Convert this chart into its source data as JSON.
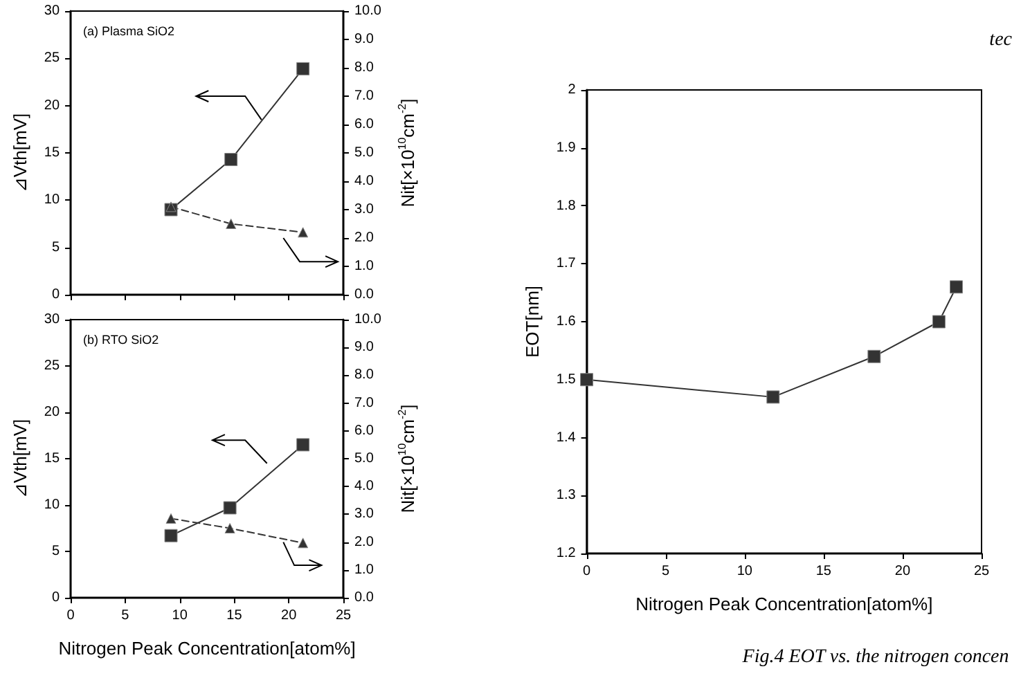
{
  "chart_data": [
    {
      "type": "line",
      "title": "(a) Plasma SiO2",
      "ylabel": "⊿Vth[mV]",
      "y2label": "Nit[×10$^{10}$cm$^{-2}$]",
      "x": [
        9.2,
        14.7,
        21.3
      ],
      "series": [
        {
          "color": "#333333",
          "values": [
            9.0,
            14.3,
            23.9
          ],
          "marker": "square",
          "line_style": "solid"
        },
        {
          "color": "#333333",
          "values": [
            3.1,
            2.5,
            2.2
          ],
          "marker": "triangle",
          "line_style": "dashed",
          "axis": "y2"
        }
      ],
      "xlim": [
        0,
        25
      ],
      "xticks": [
        0,
        5,
        10,
        15,
        20,
        25
      ],
      "ylim": [
        0,
        30
      ],
      "yticks": [
        0,
        5,
        10,
        15,
        20,
        25,
        30
      ],
      "y2lim": [
        0,
        10
      ],
      "y2ticks": [
        {
          "value": 0,
          "label": "0.0"
        },
        {
          "value": 1,
          "label": "1.0"
        },
        {
          "value": 2,
          "label": "2.0"
        },
        {
          "value": 3,
          "label": "3.0"
        },
        {
          "value": 4,
          "label": "4.0"
        },
        {
          "value": 5,
          "label": "5.0"
        },
        {
          "value": 6,
          "label": "6.0"
        },
        {
          "value": 7,
          "label": "7.0"
        },
        {
          "value": 8,
          "label": "8.0"
        },
        {
          "value": 9,
          "label": "9.0"
        },
        {
          "value": 10,
          "label": "10.0"
        }
      ],
      "tick_labels": "y",
      "grid": false
    },
    {
      "type": "line",
      "title": "(b) RTO SiO2",
      "xlabel": "Nitrogen Peak Concentration[atom%]",
      "ylabel": "⊿Vth[mV]",
      "y2label": "Nit[×10$^{10}$cm$^{-2}$]",
      "x": [
        9.2,
        14.6,
        21.3
      ],
      "series": [
        {
          "color": "#333333",
          "values": [
            6.7,
            9.7,
            16.5
          ],
          "marker": "square",
          "line_style": "solid"
        },
        {
          "color": "#333333",
          "values": [
            2.85,
            2.5,
            1.97
          ],
          "marker": "triangle",
          "line_style": "dashed",
          "axis": "y2"
        }
      ],
      "xlim": [
        0,
        25
      ],
      "xticks": [
        0,
        5,
        10,
        15,
        20,
        25
      ],
      "ylim": [
        0,
        30
      ],
      "yticks": [
        0,
        5,
        10,
        15,
        20,
        25,
        30
      ],
      "y2lim": [
        0,
        10
      ],
      "y2ticks": [
        {
          "value": 0,
          "label": "0.0"
        },
        {
          "value": 1,
          "label": "1.0"
        },
        {
          "value": 2,
          "label": "2.0"
        },
        {
          "value": 3,
          "label": "3.0"
        },
        {
          "value": 4,
          "label": "4.0"
        },
        {
          "value": 5,
          "label": "5.0"
        },
        {
          "value": 6,
          "label": "6.0"
        },
        {
          "value": 7,
          "label": "7.0"
        },
        {
          "value": 8,
          "label": "8.0"
        },
        {
          "value": 9,
          "label": "9.0"
        },
        {
          "value": 10,
          "label": "10.0"
        }
      ],
      "grid": false
    },
    {
      "type": "line",
      "xlabel": "Nitrogen Peak Concentration[atom%]",
      "ylabel": "EOT[nm]",
      "annotations": [
        "tec",
        "Fig.4 EOT vs. the nitrogen concen"
      ],
      "x": [
        0,
        11.8,
        18.2,
        22.3,
        23.4
      ],
      "series": [
        {
          "color": "#333333",
          "values": [
            1.5,
            1.47,
            1.54,
            1.6,
            1.66
          ],
          "marker": "square",
          "line_style": "solid"
        }
      ],
      "xlim": [
        0,
        25
      ],
      "xticks": [
        0,
        5,
        10,
        15,
        20,
        25
      ],
      "ylim": [
        1.2,
        2
      ],
      "yticks": [
        1.2,
        1.3,
        1.4,
        1.5,
        1.6,
        1.7,
        1.8,
        1.9,
        2
      ],
      "grid": false
    }
  ]
}
